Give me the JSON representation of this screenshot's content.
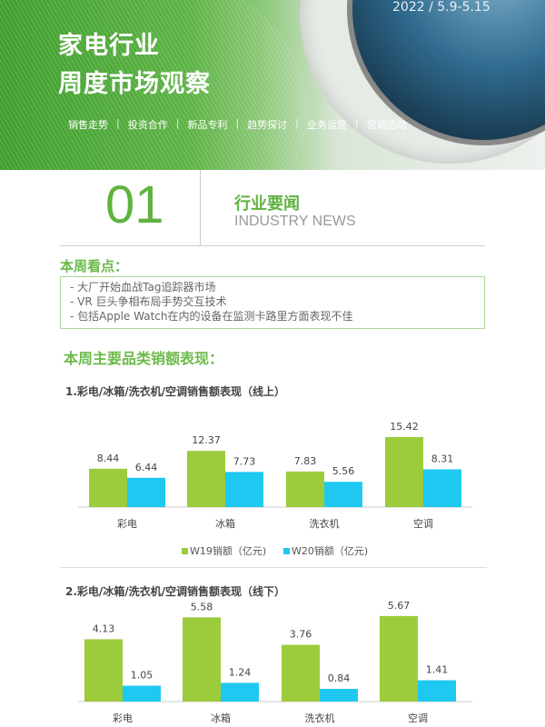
{
  "header": {
    "date": "2022 / 5.9-5.15",
    "title_line1": "家电行业",
    "title_line2": "周度市场观察",
    "nav": [
      "销售走势",
      "投资合作",
      "新品专利",
      "趋势探讨",
      "业务运营",
      "营销活动"
    ]
  },
  "section": {
    "number": "01",
    "title_cn": "行业要闻",
    "title_en": "INDUSTRY NEWS"
  },
  "highlights": {
    "heading": "本周看点：",
    "items": [
      "- 大厂开始血战Tag追踪器市场",
      "- VR 巨头争相布局手势交互技术",
      "- 包括Apple Watch在内的设备在监测卡路里方面表现不佳"
    ]
  },
  "sales_heading": "本周主要品类销额表现：",
  "colors": {
    "w19": "#9ccb3b",
    "w20": "#1ec8f0",
    "accent": "#5fb33f"
  },
  "chart_data": [
    {
      "type": "bar",
      "title": "1.彩电/冰箱/洗衣机/空调销售额表现（线上）",
      "categories": [
        "彩电",
        "冰箱",
        "洗衣机",
        "空调"
      ],
      "series": [
        {
          "name": "W19销额（亿元)",
          "values": [
            8.44,
            12.37,
            7.83,
            15.42
          ]
        },
        {
          "name": "W20销额（亿元)",
          "values": [
            6.44,
            7.73,
            5.56,
            8.31
          ]
        }
      ],
      "legend": "bottom"
    },
    {
      "type": "bar",
      "title": "2.彩电/冰箱/洗衣机/空调销售额表现（线下）",
      "categories": [
        "彩电",
        "冰箱",
        "洗衣机",
        "空调"
      ],
      "series": [
        {
          "name": "W19销额（亿元)",
          "values": [
            4.13,
            5.58,
            3.76,
            5.67
          ]
        },
        {
          "name": "W20销额（亿元)",
          "values": [
            1.05,
            1.24,
            0.84,
            1.41
          ]
        }
      ]
    }
  ]
}
